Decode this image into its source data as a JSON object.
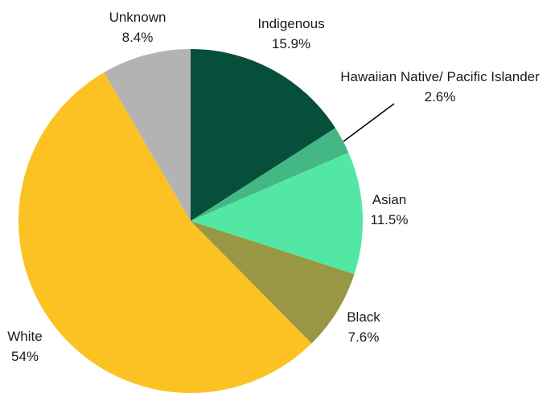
{
  "chart_data": {
    "type": "pie",
    "title": "",
    "start": "top, clockwise",
    "slices": [
      {
        "label": "Indigenous",
        "value_label": "15.9%",
        "value": 15.9,
        "color": "#064f3b"
      },
      {
        "label": "Hawaiian Native/ Pacific Islander",
        "value_label": "2.6%",
        "value": 2.6,
        "color": "#43b885"
      },
      {
        "label": "Asian",
        "value_label": "11.5%",
        "value": 11.5,
        "color": "#52e8a4"
      },
      {
        "label": "Black",
        "value_label": "7.6%",
        "value": 7.6,
        "color": "#979744"
      },
      {
        "label": "White",
        "value_label": "54%",
        "value": 54,
        "color": "#fcc223"
      },
      {
        "label": "Unknown",
        "value_label": "8.4%",
        "value": 8.4,
        "color": "#b3b3b3"
      }
    ]
  }
}
